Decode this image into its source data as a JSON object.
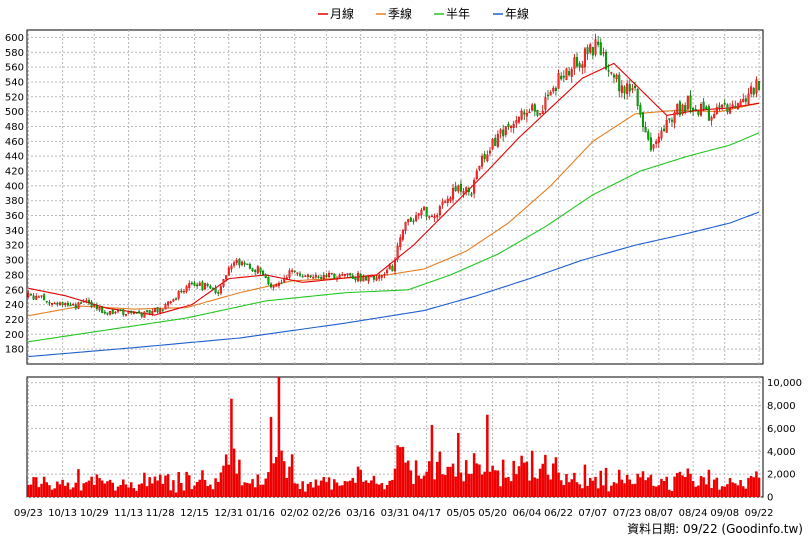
{
  "chart_data": {
    "type": "candlestick",
    "legend": [
      {
        "name": "月線",
        "color": "#e60000"
      },
      {
        "name": "季線",
        "color": "#e67e22"
      },
      {
        "name": "半年",
        "color": "#22c722"
      },
      {
        "name": "年線",
        "color": "#1f5fcf"
      }
    ],
    "price_axis": {
      "min": 160,
      "max": 610,
      "ticks": [
        180,
        200,
        220,
        240,
        260,
        280,
        300,
        320,
        340,
        360,
        380,
        400,
        420,
        440,
        460,
        480,
        500,
        520,
        540,
        560,
        580,
        600
      ]
    },
    "volume_axis": {
      "min": 0,
      "max": 10500,
      "ticks": [
        0,
        2000,
        4000,
        6000,
        8000,
        10000
      ],
      "tick_labels": [
        "0",
        "2,000",
        "4,000",
        "6,000",
        "8,000",
        "10,000"
      ]
    },
    "x_labels": [
      "09/23",
      "10/13",
      "10/29",
      "11/13",
      "11/28",
      "12/15",
      "12/31",
      "01/16",
      "02/02",
      "02/26",
      "03/16",
      "03/31",
      "04/17",
      "05/05",
      "05/20",
      "06/04",
      "06/22",
      "07/07",
      "07/23",
      "08/07",
      "08/24",
      "09/08",
      "09/22"
    ],
    "close_anchors": [
      [
        0,
        252
      ],
      [
        9,
        245
      ],
      [
        15,
        236
      ],
      [
        22,
        243
      ],
      [
        30,
        230
      ],
      [
        40,
        226
      ],
      [
        52,
        236
      ],
      [
        62,
        270
      ],
      [
        72,
        258
      ],
      [
        78,
        300
      ],
      [
        86,
        290
      ],
      [
        94,
        262
      ],
      [
        100,
        284
      ],
      [
        108,
        276
      ],
      [
        120,
        279
      ],
      [
        130,
        276
      ],
      [
        138,
        290
      ],
      [
        142,
        340
      ],
      [
        148,
        368
      ],
      [
        154,
        360
      ],
      [
        162,
        400
      ],
      [
        168,
        390
      ],
      [
        172,
        435
      ],
      [
        180,
        475
      ],
      [
        188,
        495
      ],
      [
        195,
        505
      ],
      [
        202,
        550
      ],
      [
        208,
        565
      ],
      [
        215,
        590
      ],
      [
        222,
        540
      ],
      [
        230,
        530
      ],
      [
        236,
        440
      ],
      [
        242,
        490
      ],
      [
        250,
        512
      ],
      [
        258,
        498
      ],
      [
        265,
        505
      ],
      [
        272,
        520
      ],
      [
        277,
        538
      ]
    ],
    "ma_month": [
      [
        0,
        262
      ],
      [
        14,
        252
      ],
      [
        30,
        235
      ],
      [
        48,
        226
      ],
      [
        62,
        240
      ],
      [
        76,
        275
      ],
      [
        90,
        280
      ],
      [
        104,
        270
      ],
      [
        118,
        275
      ],
      [
        132,
        280
      ],
      [
        146,
        320
      ],
      [
        160,
        370
      ],
      [
        174,
        420
      ],
      [
        186,
        465
      ],
      [
        198,
        505
      ],
      [
        210,
        545
      ],
      [
        222,
        565
      ],
      [
        232,
        530
      ],
      [
        242,
        495
      ],
      [
        254,
        502
      ],
      [
        266,
        505
      ],
      [
        278,
        512
      ]
    ],
    "ma_quarter": [
      [
        0,
        225
      ],
      [
        20,
        238
      ],
      [
        40,
        234
      ],
      [
        60,
        236
      ],
      [
        80,
        256
      ],
      [
        100,
        272
      ],
      [
        120,
        276
      ],
      [
        136,
        280
      ],
      [
        150,
        288
      ],
      [
        166,
        312
      ],
      [
        182,
        350
      ],
      [
        198,
        400
      ],
      [
        214,
        460
      ],
      [
        230,
        497
      ],
      [
        246,
        502
      ],
      [
        262,
        500
      ],
      [
        278,
        512
      ]
    ],
    "ma_half": [
      [
        0,
        190
      ],
      [
        30,
        206
      ],
      [
        60,
        222
      ],
      [
        90,
        245
      ],
      [
        120,
        256
      ],
      [
        144,
        260
      ],
      [
        160,
        280
      ],
      [
        178,
        308
      ],
      [
        196,
        345
      ],
      [
        214,
        388
      ],
      [
        232,
        420
      ],
      [
        250,
        440
      ],
      [
        266,
        455
      ],
      [
        278,
        473
      ]
    ],
    "ma_year": [
      [
        0,
        170
      ],
      [
        40,
        182
      ],
      [
        80,
        195
      ],
      [
        120,
        215
      ],
      [
        150,
        232
      ],
      [
        170,
        252
      ],
      [
        190,
        275
      ],
      [
        210,
        300
      ],
      [
        230,
        320
      ],
      [
        250,
        336
      ],
      [
        266,
        350
      ],
      [
        278,
        366
      ]
    ],
    "footer": "資料日期: 09/22 (Goodinfo.tw)"
  }
}
